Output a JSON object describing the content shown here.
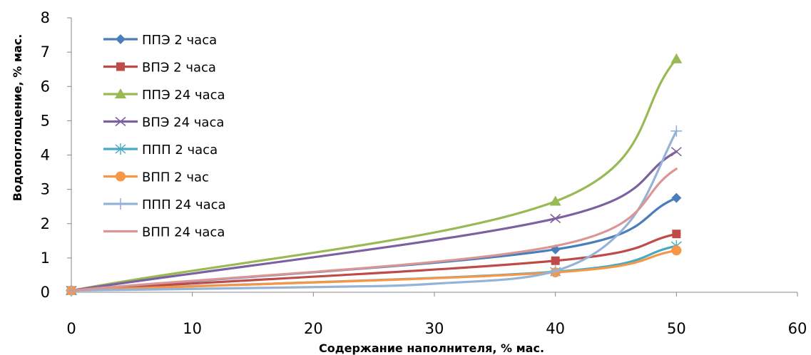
{
  "chart_data": {
    "type": "line",
    "xlabel": "Содержание наполнителя, % мас.",
    "ylabel": "Водопоглощение, % мас.",
    "xlim": [
      0,
      60
    ],
    "ylim": [
      0,
      8
    ],
    "x_ticks": [
      "0",
      "10",
      "20",
      "30",
      "40",
      "50",
      "60"
    ],
    "y_ticks": [
      "0",
      "1",
      "2",
      "3",
      "4",
      "5",
      "6",
      "7",
      "8"
    ],
    "x": [
      0,
      40,
      50
    ],
    "grid": false,
    "legend_position": "top-left",
    "series": [
      {
        "name": "ППЭ 2 часа",
        "values": [
          0.05,
          1.25,
          2.75
        ],
        "color": "#4a7ebb",
        "marker": "diamond"
      },
      {
        "name": "ВПЭ 2 часа",
        "values": [
          0.05,
          0.92,
          1.7
        ],
        "color": "#be4b48",
        "marker": "square"
      },
      {
        "name": "ППЭ 24 часа",
        "values": [
          0.05,
          2.65,
          6.8
        ],
        "color": "#98b954",
        "marker": "triangle"
      },
      {
        "name": "ВПЭ 24 часа",
        "values": [
          0.05,
          2.15,
          4.1
        ],
        "color": "#7d60a0",
        "marker": "x"
      },
      {
        "name": "ППП 2 часа",
        "values": [
          0.05,
          0.6,
          1.35
        ],
        "color": "#46aac5",
        "marker": "star"
      },
      {
        "name": "ВПП 2 час",
        "values": [
          0.05,
          0.58,
          1.22
        ],
        "color": "#f79646",
        "marker": "circle"
      },
      {
        "name": "ППП 24 часа",
        "values": [
          0.05,
          0.62,
          4.7
        ],
        "color": "#94b3d6",
        "marker": "plus"
      },
      {
        "name": "ВПП 24 часа",
        "values": [
          0.05,
          1.35,
          3.6
        ],
        "color": "#d99694",
        "marker": "none"
      }
    ]
  }
}
